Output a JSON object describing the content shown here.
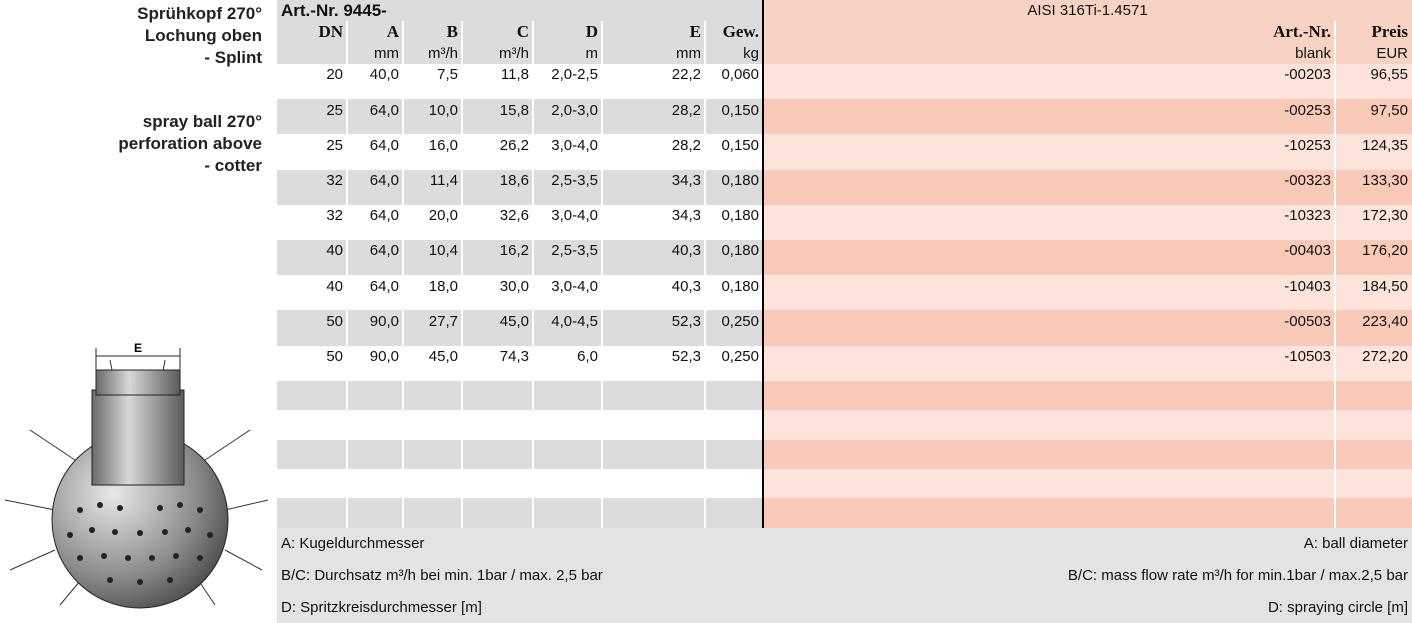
{
  "title_de": [
    "Sprühkopf 270°",
    "Lochung oben",
    "- Splint"
  ],
  "title_en": [
    "spray ball 270°",
    "perforation above",
    "- cotter"
  ],
  "image_label": "E",
  "table": {
    "title": "Art.-Nr. 9445-",
    "material": "AISI 316Ti-1.4571",
    "columns": [
      {
        "name": "DN"
      },
      {
        "name": "A",
        "unit": "mm"
      },
      {
        "name": "B",
        "unit": "m³/h"
      },
      {
        "name": "C",
        "unit": "m³/h"
      },
      {
        "name": "D",
        "unit": "m"
      },
      {
        "name": "E",
        "unit": "mm"
      },
      {
        "name": "Gew.",
        "unit": "kg"
      }
    ],
    "right_columns": [
      {
        "name": "Art.-Nr.",
        "unit": "blank"
      },
      {
        "name": "Preis",
        "unit": "EUR"
      }
    ],
    "rows": [
      [
        "20",
        "40,0",
        "7,5",
        "11,8",
        "2,0-2,5",
        "22,2",
        "0,060",
        "-00203",
        "96,55"
      ],
      [
        "25",
        "64,0",
        "10,0",
        "15,8",
        "2,0-3,0",
        "28,2",
        "0,150",
        "-00253",
        "97,50"
      ],
      [
        "25",
        "64,0",
        "16,0",
        "26,2",
        "3,0-4,0",
        "28,2",
        "0,150",
        "-10253",
        "124,35"
      ],
      [
        "32",
        "64,0",
        "11,4",
        "18,6",
        "2,5-3,5",
        "34,3",
        "0,180",
        "-00323",
        "133,30"
      ],
      [
        "32",
        "64,0",
        "20,0",
        "32,6",
        "3,0-4,0",
        "34,3",
        "0,180",
        "-10323",
        "172,30"
      ],
      [
        "40",
        "64,0",
        "10,4",
        "16,2",
        "2,5-3,5",
        "40,3",
        "0,180",
        "-00403",
        "176,20"
      ],
      [
        "40",
        "64,0",
        "18,0",
        "30,0",
        "3,0-4,0",
        "40,3",
        "0,180",
        "-10403",
        "184,50"
      ],
      [
        "50",
        "90,0",
        "27,7",
        "45,0",
        "4,0-4,5",
        "52,3",
        "0,250",
        "-00503",
        "223,40"
      ],
      [
        "50",
        "90,0",
        "45,0",
        "74,3",
        "6,0",
        "52,3",
        "0,250",
        "-10503",
        "272,20"
      ]
    ]
  },
  "footer": {
    "left": [
      "A: Kugeldurchmesser",
      "B/C: Durchsatz m³/h bei min. 1bar / max. 2,5 bar",
      "D: Spritzkreisdurchmesser [m]"
    ],
    "right": [
      "A: ball diameter",
      "B/C: mass flow rate m³/h for min.1bar / max.2,5 bar",
      "D: spraying circle [m]"
    ]
  }
}
